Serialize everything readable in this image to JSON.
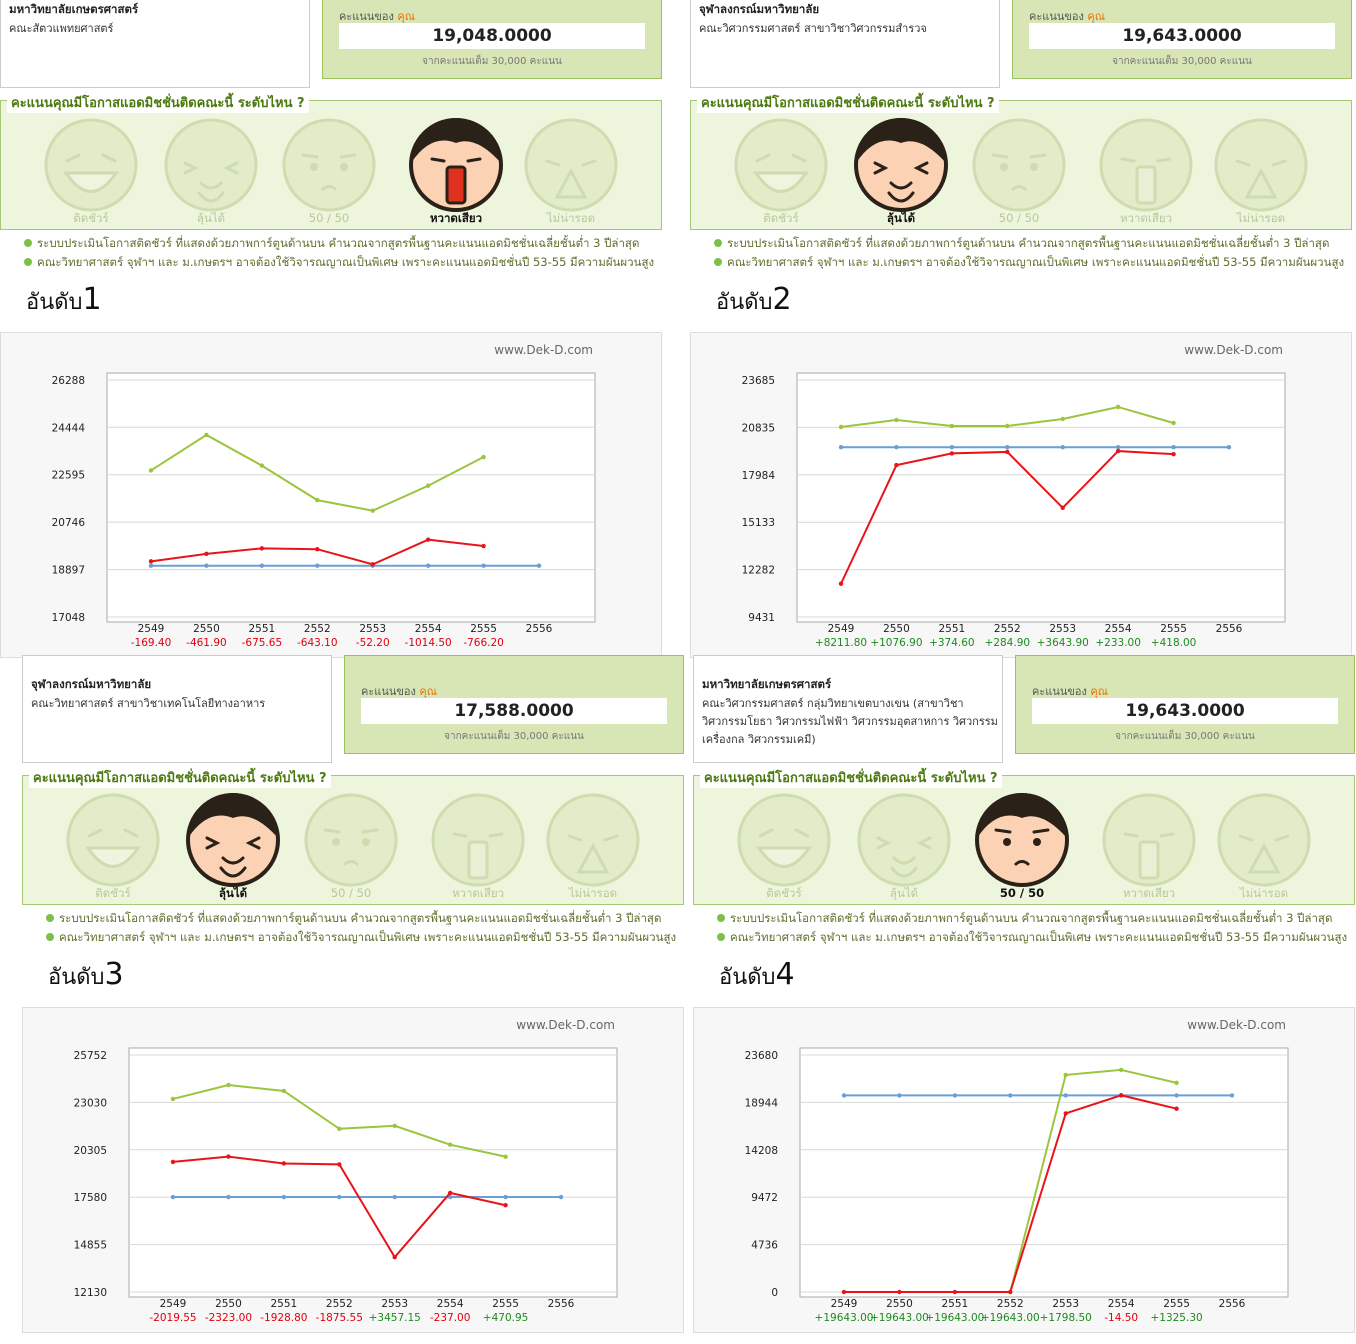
{
  "panels": [
    {
      "university": "มหาวิทยาลัยเกษตรศาสตร์",
      "faculty": "คณะสัตวแพทยศาสตร์",
      "score_label": "คะแนนของ",
      "score_you": "คุณ",
      "score": "19,048.0000",
      "score_note": "จากคะแนนเต็ม 30,000 คะแนน",
      "question": "คะแนนคุณมีโอกาสแอดมิชชั่นติดคณะนี้ ระดับไหน ?",
      "ratings": [
        "ติดชัวร์",
        "ลุ้นได้",
        "50 / 50",
        "หวาดเสียว",
        "ไม่น่ารอด"
      ],
      "active_rating": 3,
      "notes": [
        "ระบบประเมินโอกาสติดชัวร์ ที่แสดงด้วยภาพการ์ตูนด้านบน คำนวณจากสูตรพื้นฐานคะแนนแอดมิชชั่นเฉลี่ยชั้นต่ำ 3 ปีล่าสุด",
        "คณะวิทยาศาสตร์ จุฬาฯ และ ม.เกษตรฯ อาจต้องใช้วิจารณญาณเป็นพิเศษ เพราะคะแนนแอดมิชชั่นปี 53-55 มีความผันผวนสูง"
      ],
      "rank_label": "อันดับ",
      "rank": "1"
    },
    {
      "university": "จุฬาลงกรณ์มหาวิทยาลัย",
      "faculty": "คณะวิศวกรรมศาสตร์ สาขาวิชาวิศวกรรมสำรวจ",
      "score_label": "คะแนนของ",
      "score_you": "คุณ",
      "score": "19,643.0000",
      "score_note": "จากคะแนนเต็ม 30,000 คะแนน",
      "question": "คะแนนคุณมีโอกาสแอดมิชชั่นติดคณะนี้ ระดับไหน ?",
      "ratings": [
        "ติดชัวร์",
        "ลุ้นได้",
        "50 / 50",
        "หวาดเสียว",
        "ไม่น่ารอด"
      ],
      "active_rating": 1,
      "notes": [
        "ระบบประเมินโอกาสติดชัวร์ ที่แสดงด้วยภาพการ์ตูนด้านบน คำนวณจากสูตรพื้นฐานคะแนนแอดมิชชั่นเฉลี่ยชั้นต่ำ 3 ปีล่าสุด",
        "คณะวิทยาศาสตร์ จุฬาฯ และ ม.เกษตรฯ อาจต้องใช้วิจารณญาณเป็นพิเศษ เพราะคะแนนแอดมิชชั่นปี 53-55 มีความผันผวนสูง"
      ],
      "rank_label": "อันดับ",
      "rank": "2"
    },
    {
      "university": "จุฬาลงกรณ์มหาวิทยาลัย",
      "faculty": "คณะวิทยาศาสตร์ สาขาวิชาเทคโนโลยีทางอาหาร",
      "score_label": "คะแนนของ",
      "score_you": "คุณ",
      "score": "17,588.0000",
      "score_note": "จากคะแนนเต็ม 30,000 คะแนน",
      "question": "คะแนนคุณมีโอกาสแอดมิชชั่นติดคณะนี้ ระดับไหน ?",
      "ratings": [
        "ติดชัวร์",
        "ลุ้นได้",
        "50 / 50",
        "หวาดเสียว",
        "ไม่น่ารอด"
      ],
      "active_rating": 1,
      "notes": [
        "ระบบประเมินโอกาสติดชัวร์ ที่แสดงด้วยภาพการ์ตูนด้านบน คำนวณจากสูตรพื้นฐานคะแนนแอดมิชชั่นเฉลี่ยชั้นต่ำ 3 ปีล่าสุด",
        "คณะวิทยาศาสตร์ จุฬาฯ และ ม.เกษตรฯ อาจต้องใช้วิจารณญาณเป็นพิเศษ เพราะคะแนนแอดมิชชั่นปี 53-55 มีความผันผวนสูง"
      ],
      "rank_label": "อันดับ",
      "rank": "3"
    },
    {
      "university": "มหาวิทยาลัยเกษตรศาสตร์",
      "faculty": "คณะวิศวกรรมศาสตร์ กลุ่มวิทยาเขตบางเขน (สาขาวิชาวิศวกรรมโยธา วิศวกรรมไฟฟ้า วิศวกรรมอุตสาหการ วิศวกรรมเครื่องกล วิศวกรรมเคมี)",
      "score_label": "คะแนนของ",
      "score_you": "คุณ",
      "score": "19,643.0000",
      "score_note": "จากคะแนนเต็ม 30,000 คะแนน",
      "question": "คะแนนคุณมีโอกาสแอดมิชชั่นติดคณะนี้ ระดับไหน ?",
      "ratings": [
        "ติดชัวร์",
        "ลุ้นได้",
        "50 / 50",
        "หวาดเสียว",
        "ไม่น่ารอด"
      ],
      "active_rating": 2,
      "notes": [
        "ระบบประเมินโอกาสติดชัวร์ ที่แสดงด้วยภาพการ์ตูนด้านบน คำนวณจากสูตรพื้นฐานคะแนนแอดมิชชั่นเฉลี่ยชั้นต่ำ 3 ปีล่าสุด",
        "คณะวิทยาศาสตร์ จุฬาฯ และ ม.เกษตรฯ อาจต้องใช้วิจารณญาณเป็นพิเศษ เพราะคะแนนแอดมิชชั่นปี 53-55 มีความผันผวนสูง"
      ],
      "rank_label": "อันดับ",
      "rank": "4"
    }
  ],
  "chart_data": [
    {
      "type": "line",
      "watermark": "www.Dek-D.com",
      "categories": [
        "2549",
        "2550",
        "2551",
        "2552",
        "2553",
        "2554",
        "2555",
        "2556"
      ],
      "ylim": [
        17048,
        26288
      ],
      "yticks": [
        17048,
        18897,
        20746,
        22595,
        24444,
        26288
      ],
      "grid": true,
      "series": [
        {
          "color": "#9bc53d",
          "values": [
            22763,
            24145,
            22950,
            21605,
            21194,
            22165,
            23285,
            null
          ]
        },
        {
          "color": "#e8141a",
          "values": [
            19217.4,
            19509.9,
            19723.65,
            19691.1,
            19100.2,
            20062.5,
            19814.2,
            null
          ]
        },
        {
          "color": "#6a9fd4",
          "values": [
            19048,
            19048,
            19048,
            19048,
            19048,
            19048,
            19048,
            19048
          ]
        }
      ],
      "differences": [
        "-169.40",
        "-461.90",
        "-675.65",
        "-643.10",
        "-52.20",
        "-1014.50",
        "-766.20"
      ]
    },
    {
      "type": "line",
      "watermark": "www.Dek-D.com",
      "categories": [
        "2549",
        "2550",
        "2551",
        "2552",
        "2553",
        "2554",
        "2555",
        "2556"
      ],
      "ylim": [
        9431,
        23685
      ],
      "yticks": [
        9431,
        12282,
        15133,
        17984,
        20835,
        23685
      ],
      "grid": true,
      "series": [
        {
          "color": "#9bc53d",
          "values": [
            20859,
            21281,
            20919,
            20919,
            21340,
            22063,
            21100,
            null
          ]
        },
        {
          "color": "#e8141a",
          "values": [
            11431.2,
            18566.1,
            19268.4,
            19358.1,
            15999.1,
            19410,
            19225,
            null
          ]
        },
        {
          "color": "#6a9fd4",
          "values": [
            19643,
            19643,
            19643,
            19643,
            19643,
            19643,
            19643,
            19643
          ]
        }
      ],
      "differences": [
        "+8211.80",
        "+1076.90",
        "+374.60",
        "+284.90",
        "+3643.90",
        "+233.00",
        "+418.00"
      ]
    },
    {
      "type": "line",
      "watermark": "www.Dek-D.com",
      "categories": [
        "2549",
        "2550",
        "2551",
        "2552",
        "2553",
        "2554",
        "2555",
        "2556"
      ],
      "ylim": [
        12130,
        25752
      ],
      "yticks": [
        12130,
        14855,
        17580,
        20305,
        23030,
        25752
      ],
      "grid": true,
      "series": [
        {
          "color": "#9bc53d",
          "values": [
            23227,
            24028,
            23684,
            21511,
            21682,
            20596,
            19909,
            null
          ]
        },
        {
          "color": "#e8141a",
          "values": [
            19607.55,
            19911,
            19516.8,
            19463.55,
            14130.85,
            17825,
            17117.05,
            null
          ]
        },
        {
          "color": "#6a9fd4",
          "values": [
            17588,
            17588,
            17588,
            17588,
            17588,
            17588,
            17588,
            17588
          ]
        }
      ],
      "differences": [
        "-2019.55",
        "-2323.00",
        "-1928.80",
        "-1875.55",
        "+3457.15",
        "-237.00",
        "+470.95"
      ]
    },
    {
      "type": "line",
      "watermark": "www.Dek-D.com",
      "categories": [
        "2549",
        "2550",
        "2551",
        "2552",
        "2553",
        "2554",
        "2555",
        "2556"
      ],
      "ylim": [
        0,
        23680
      ],
      "yticks": [
        0,
        4736,
        9472,
        14208,
        18944,
        23680
      ],
      "grid": true,
      "series": [
        {
          "color": "#9bc53d",
          "values": [
            null,
            null,
            null,
            0,
            21691,
            22188,
            20895,
            null
          ]
        },
        {
          "color": "#e8141a",
          "values": [
            0,
            0,
            0,
            0,
            17844.5,
            19657.5,
            18317.7,
            null
          ]
        },
        {
          "color": "#6a9fd4",
          "values": [
            19643,
            19643,
            19643,
            19643,
            19643,
            19643,
            19643,
            19643
          ]
        }
      ],
      "differences": [
        "+19643.00",
        "+19643.00",
        "+19643.00",
        "+19643.00",
        "+1798.50",
        "-14.50",
        "+1325.30"
      ]
    }
  ]
}
